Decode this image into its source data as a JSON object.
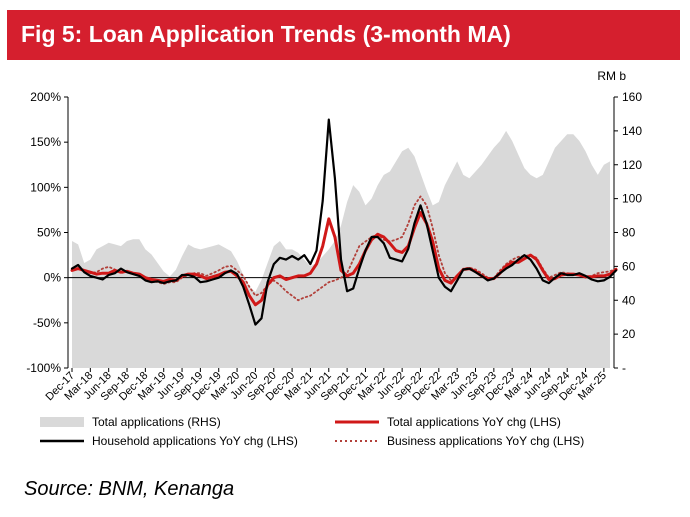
{
  "header": {
    "title": "Fig 5: Loan Application Trends (3-month MA)"
  },
  "source": "Source: BNM, Kenanga",
  "colors": {
    "banner": "#d51f2e",
    "area": "#d9d9d9",
    "total": "#d01818",
    "household": "#000000",
    "business": "#b2403a"
  },
  "chart_data": {
    "type": "line",
    "title": "",
    "left_axis": {
      "min": -100,
      "max": 200,
      "step": 50,
      "unit": "%",
      "tick_labels": [
        "-100%",
        "-50%",
        "0%",
        "50%",
        "100%",
        "150%",
        "200%"
      ]
    },
    "right_axis": {
      "label": "RM b",
      "min": 0,
      "max": 160,
      "step": 20,
      "tick_labels": [
        "-",
        "20",
        "40",
        "60",
        "80",
        "100",
        "120",
        "140",
        "160"
      ]
    },
    "x_tick_labels": [
      "Dec-17",
      "Mar-18",
      "Jun-18",
      "Sep-18",
      "Dec-18",
      "Mar-19",
      "Jun-19",
      "Sep-19",
      "Dec-19",
      "Mar-20",
      "Jun-20",
      "Sep-20",
      "Dec-20",
      "Mar-21",
      "Jun-21",
      "Sep-21",
      "Dec-21",
      "Mar-22",
      "Jun-22",
      "Sep-22",
      "Dec-22",
      "Mar-23",
      "Jun-23",
      "Sep-23",
      "Dec-23",
      "Mar-24",
      "Jun-24",
      "Sep-24",
      "Dec-24",
      "Mar-25"
    ],
    "start_month": "2017-12",
    "legend": {
      "placement": "bottom"
    },
    "series": [
      {
        "key": "area",
        "name": "Total applications (RHS)",
        "axis": "right",
        "style": "area",
        "values": [
          75,
          73,
          62,
          64,
          70,
          72,
          74,
          73,
          72,
          75,
          76,
          76,
          70,
          67,
          62,
          57,
          54,
          58,
          66,
          73,
          71,
          70,
          71,
          72,
          73,
          71,
          69,
          63,
          55,
          48,
          45,
          52,
          62,
          72,
          75,
          70,
          70,
          68,
          64,
          60,
          62,
          66,
          70,
          75,
          84,
          98,
          108,
          104,
          96,
          100,
          108,
          114,
          116,
          122,
          128,
          130,
          125,
          115,
          105,
          96,
          98,
          108,
          115,
          122,
          114,
          112,
          116,
          120,
          125,
          130,
          134,
          140,
          134,
          126,
          118,
          114,
          112,
          114,
          122,
          130,
          134,
          138,
          138,
          134,
          128,
          120,
          114,
          120,
          122
        ]
      },
      {
        "key": "total",
        "name": "Total applications YoY chg (LHS)",
        "axis": "left",
        "style": "solid",
        "values": [
          8,
          10,
          8,
          6,
          4,
          5,
          5,
          8,
          6,
          7,
          5,
          4,
          0,
          -2,
          -3,
          -4,
          -2,
          -3,
          2,
          4,
          4,
          2,
          -1,
          1,
          3,
          6,
          7,
          2,
          -5,
          -20,
          -30,
          -25,
          -8,
          0,
          2,
          -2,
          0,
          2,
          2,
          5,
          15,
          35,
          65,
          45,
          8,
          2,
          5,
          15,
          30,
          42,
          48,
          45,
          38,
          30,
          28,
          35,
          55,
          72,
          60,
          40,
          10,
          -3,
          -6,
          2,
          9,
          10,
          7,
          2,
          -1,
          -1,
          5,
          13,
          17,
          17,
          21,
          25,
          20,
          8,
          -2,
          -1,
          3,
          4,
          4,
          3,
          1,
          1,
          2,
          2,
          4,
          9
        ]
      },
      {
        "key": "household",
        "name": "Household applications YoY chg (LHS)",
        "axis": "left",
        "style": "solid",
        "values": [
          10,
          14,
          6,
          2,
          0,
          -2,
          3,
          5,
          10,
          6,
          4,
          2,
          -3,
          -5,
          -4,
          -6,
          -4,
          -3,
          3,
          3,
          1,
          -5,
          -4,
          -2,
          0,
          5,
          8,
          4,
          -10,
          -30,
          -52,
          -45,
          -5,
          15,
          22,
          20,
          24,
          20,
          25,
          15,
          30,
          85,
          175,
          110,
          20,
          -15,
          -12,
          10,
          30,
          45,
          45,
          38,
          22,
          20,
          18,
          32,
          60,
          80,
          60,
          30,
          0,
          -10,
          -15,
          -3,
          9,
          10,
          6,
          2,
          -3,
          -1,
          5,
          10,
          14,
          20,
          25,
          20,
          10,
          -3,
          -6,
          0,
          5,
          3,
          3,
          5,
          2,
          -2,
          -4,
          -3,
          1,
          8
        ]
      },
      {
        "key": "business",
        "name": "Business applications YoY chg (LHS)",
        "axis": "left",
        "style": "dotted",
        "values": [
          9,
          10,
          7,
          5,
          6,
          10,
          12,
          9,
          5,
          7,
          5,
          4,
          -1,
          -3,
          -5,
          -7,
          -5,
          -5,
          0,
          3,
          5,
          5,
          2,
          5,
          8,
          12,
          13,
          8,
          2,
          -10,
          -20,
          -17,
          -8,
          -3,
          -8,
          -15,
          -20,
          -25,
          -22,
          -20,
          -15,
          -10,
          -5,
          -3,
          0,
          5,
          20,
          35,
          40,
          45,
          48,
          42,
          40,
          42,
          45,
          60,
          80,
          90,
          80,
          55,
          25,
          5,
          -3,
          0,
          10,
          11,
          9,
          5,
          0,
          -1,
          8,
          15,
          20,
          23,
          24,
          25,
          22,
          10,
          0,
          3,
          6,
          5,
          4,
          3,
          0,
          2,
          5,
          6,
          7,
          10
        ]
      }
    ]
  }
}
